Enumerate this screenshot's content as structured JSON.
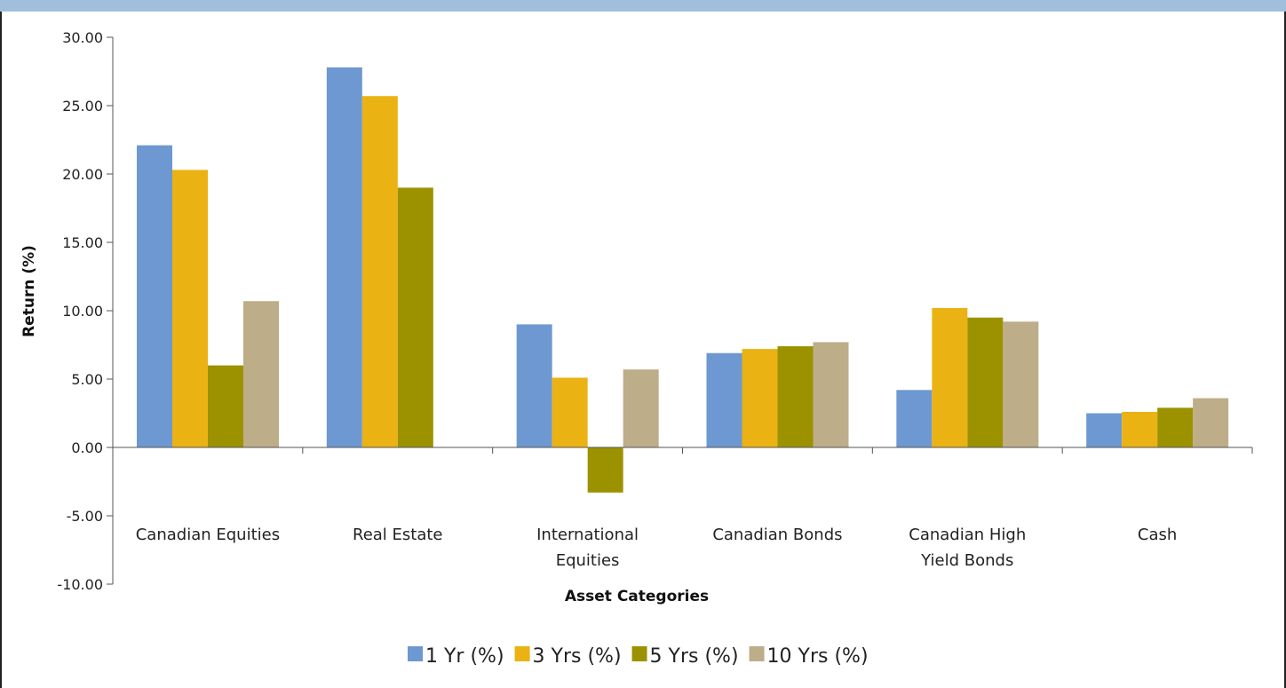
{
  "chart_data": {
    "type": "bar",
    "xlabel": "Asset Categories",
    "ylabel": "Return (%)",
    "ylim": [
      -10,
      30
    ],
    "yticks": [
      30,
      25,
      20,
      15,
      10,
      5,
      0,
      -5,
      -10
    ],
    "ytick_labels": [
      "30.00",
      "25.00",
      "20.00",
      "15.00",
      "10.00",
      "5.00",
      "0.00",
      "-5.00",
      "-10.00"
    ],
    "grid": false,
    "legend_position": "bottom",
    "categories": [
      [
        "Canadian Equities"
      ],
      [
        "Real Estate"
      ],
      [
        "International",
        "Equities"
      ],
      [
        "Canadian Bonds"
      ],
      [
        "Canadian High",
        "Yield Bonds"
      ],
      [
        "Cash"
      ]
    ],
    "series": [
      {
        "name": "1 Yr (%)",
        "color": "#6d98d1",
        "values": [
          22.1,
          27.8,
          9.0,
          6.9,
          4.2,
          2.5
        ]
      },
      {
        "name": "3 Yrs (%)",
        "color": "#eab213",
        "values": [
          20.3,
          25.7,
          5.1,
          7.2,
          10.2,
          2.6
        ]
      },
      {
        "name": "5 Yrs (%)",
        "color": "#9c9200",
        "values": [
          6.0,
          19.0,
          -3.3,
          7.4,
          9.5,
          2.9
        ]
      },
      {
        "name": "10 Yrs (%)",
        "color": "#bdad88",
        "values": [
          10.7,
          null,
          5.7,
          7.7,
          9.2,
          3.6
        ]
      }
    ]
  }
}
